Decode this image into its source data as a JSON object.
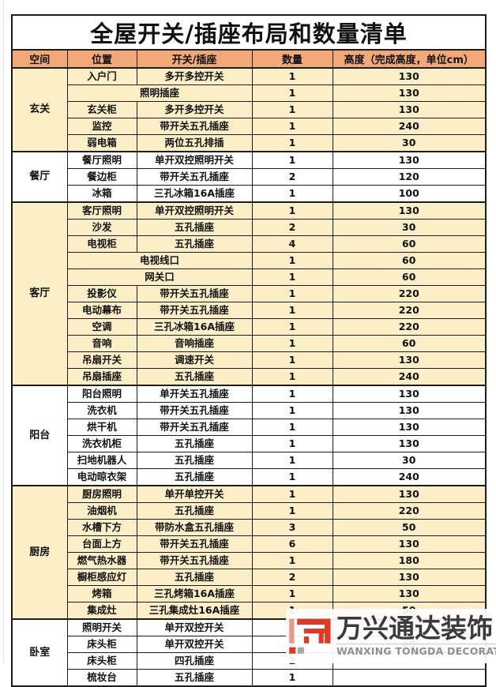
{
  "page": {
    "background": "#ffffff"
  },
  "table": {
    "title": "全屋开关/插座布局和数量清单",
    "columns": [
      "空间",
      "位置",
      "开关/插座",
      "数量",
      "高度（完成高度，单位cm）"
    ],
    "colors": {
      "header_bg": "#F2A979",
      "row_cream": "#FCEFC8",
      "row_white": "#FFFFFF",
      "border": "#1C1C1C",
      "text": "#111111"
    },
    "sections": [
      {
        "space": "玄关",
        "shade": "cream",
        "rows": [
          {
            "pos": "入户门",
            "item": "多开多控开关",
            "qty": "1",
            "height": "130",
            "merged": false
          },
          {
            "pos": "",
            "item": "照明插座",
            "qty": "1",
            "height": "130",
            "merged": true
          },
          {
            "pos": "玄关柜",
            "item": "多开多控开关",
            "qty": "1",
            "height": "130",
            "merged": false
          },
          {
            "pos": "监控",
            "item": "带开关五孔插座",
            "qty": "1",
            "height": "240",
            "merged": false
          },
          {
            "pos": "弱电箱",
            "item": "两位五孔排插",
            "qty": "1",
            "height": "30",
            "merged": false
          }
        ]
      },
      {
        "space": "餐厅",
        "shade": "white",
        "rows": [
          {
            "pos": "餐厅照明",
            "item": "单开双控照明开关",
            "qty": "1",
            "height": "130",
            "merged": false
          },
          {
            "pos": "餐边柜",
            "item": "带开关五孔插座",
            "qty": "2",
            "height": "120",
            "merged": false
          },
          {
            "pos": "冰箱",
            "item": "三孔冰箱16A插座",
            "qty": "1",
            "height": "100",
            "merged": false
          }
        ]
      },
      {
        "space": "客厅",
        "shade": "cream",
        "rows": [
          {
            "pos": "客厅照明",
            "item": "单开双控照明开关",
            "qty": "1",
            "height": "130",
            "merged": false
          },
          {
            "pos": "沙发",
            "item": "五孔插座",
            "qty": "2",
            "height": "30",
            "merged": false
          },
          {
            "pos": "电视柜",
            "item": "五孔插座",
            "qty": "4",
            "height": "60",
            "merged": false
          },
          {
            "pos": "",
            "item": "电视线口",
            "qty": "1",
            "height": "60",
            "merged": true
          },
          {
            "pos": "",
            "item": "网关口",
            "qty": "1",
            "height": "60",
            "merged": true
          },
          {
            "pos": "投影仪",
            "item": "带开关五孔插座",
            "qty": "1",
            "height": "220",
            "merged": false
          },
          {
            "pos": "电动幕布",
            "item": "带开关五孔插座",
            "qty": "1",
            "height": "220",
            "merged": false
          },
          {
            "pos": "空调",
            "item": "三孔冰箱16A插座",
            "qty": "1",
            "height": "220",
            "merged": false
          },
          {
            "pos": "音响",
            "item": "音响插座",
            "qty": "1",
            "height": "60",
            "merged": false
          },
          {
            "pos": "吊扇开关",
            "item": "调速开关",
            "qty": "1",
            "height": "130",
            "merged": false
          },
          {
            "pos": "吊扇插座",
            "item": "五孔插座",
            "qty": "1",
            "height": "240",
            "merged": false
          }
        ]
      },
      {
        "space": "阳台",
        "shade": "white",
        "rows": [
          {
            "pos": "阳台照明",
            "item": "单开关五孔插座",
            "qty": "1",
            "height": "130",
            "merged": false
          },
          {
            "pos": "洗衣机",
            "item": "带开关五孔插座",
            "qty": "1",
            "height": "130",
            "merged": false
          },
          {
            "pos": "烘干机",
            "item": "带开关五孔插座",
            "qty": "1",
            "height": "130",
            "merged": false
          },
          {
            "pos": "洗衣机柜",
            "item": "五孔插座",
            "qty": "1",
            "height": "130",
            "merged": false
          },
          {
            "pos": "扫地机器人",
            "item": "五孔插座",
            "qty": "1",
            "height": "30",
            "merged": false
          },
          {
            "pos": "电动晾衣架",
            "item": "五孔插座",
            "qty": "1",
            "height": "240",
            "merged": false
          }
        ]
      },
      {
        "space": "厨房",
        "shade": "cream",
        "rows": [
          {
            "pos": "厨房照明",
            "item": "单开单控开关",
            "qty": "1",
            "height": "130",
            "merged": false
          },
          {
            "pos": "油烟机",
            "item": "五孔插座",
            "qty": "1",
            "height": "220",
            "merged": false
          },
          {
            "pos": "水槽下方",
            "item": "带防水盒五孔插座",
            "qty": "3",
            "height": "50",
            "merged": false
          },
          {
            "pos": "台面上方",
            "item": "带开关五孔插座",
            "qty": "6",
            "height": "130",
            "merged": false
          },
          {
            "pos": "燃气热水器",
            "item": "带开关五孔插座",
            "qty": "1",
            "height": "180",
            "merged": false
          },
          {
            "pos": "橱柜感应灯",
            "item": "五孔插座",
            "qty": "2",
            "height": "130",
            "merged": false
          },
          {
            "pos": "烤箱",
            "item": "三孔烤箱16A插座",
            "qty": "1",
            "height": "130",
            "merged": false
          },
          {
            "pos": "集成灶",
            "item": "三孔集成灶16A插座",
            "qty": "1",
            "height": "50",
            "merged": false
          }
        ]
      },
      {
        "space": "卧室",
        "shade": "white",
        "rows": [
          {
            "pos": "照明开关",
            "item": "单开双控开关",
            "qty": "1",
            "height": "130",
            "merged": false
          },
          {
            "pos": "床头柜",
            "item": "单开双控开关",
            "qty": "2",
            "height": "80",
            "merged": false
          },
          {
            "pos": "床头柜",
            "item": "四孔插座",
            "qty": "2",
            "height": "",
            "merged": false
          },
          {
            "pos": "梳妆台",
            "item": "五孔插座",
            "qty": "1",
            "height": "",
            "merged": false
          }
        ]
      }
    ]
  },
  "watermark": {
    "cn": "万兴通达装饰",
    "en": "WANXING TONGDA DECORATION",
    "colors": {
      "logo_red": "#DD3B28",
      "logo_pale": "#E9998C",
      "logo_gray": "#A7A7A7",
      "cn_text": "#3B3B3B",
      "en_text": "#8F8F8F"
    }
  }
}
